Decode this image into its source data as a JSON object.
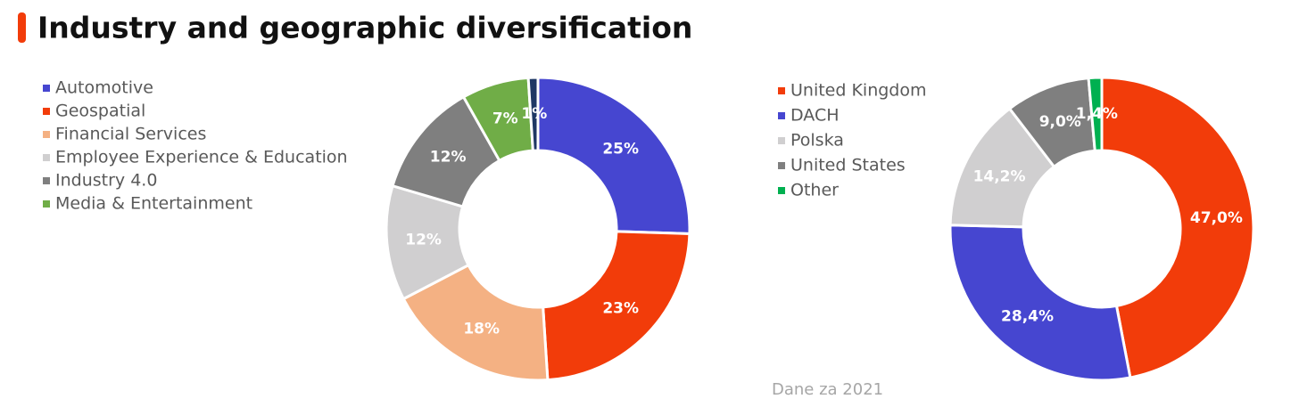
{
  "title": "Industry and geographic diversification",
  "note": "Dane za 2021",
  "chart_data": [
    {
      "type": "donut",
      "categories": [
        "Automotive",
        "Geospatial",
        "Financial Services",
        "Employee Experience & Education",
        "Industry 4.0",
        "Media & Entertainment",
        null
      ],
      "values": [
        25,
        23,
        18,
        12,
        12,
        7,
        1
      ],
      "value_labels": [
        "25%",
        "23%",
        "18%",
        "12%",
        "12%",
        "7%",
        "1%"
      ],
      "colors": [
        "#4646d0",
        "#f23c0a",
        "#f4b183",
        "#d0cfd0",
        "#7f7f7f",
        "#70ad47",
        "#1f3864"
      ]
    },
    {
      "type": "donut",
      "categories": [
        "United Kingdom",
        "DACH",
        "Polska",
        "United States",
        "Other"
      ],
      "values": [
        47.0,
        28.4,
        14.2,
        9.0,
        1.4
      ],
      "value_labels": [
        "47,0%",
        "28,4%",
        "14,2%",
        "9,0%",
        "1,4%"
      ],
      "colors": [
        "#f23c0a",
        "#4646d0",
        "#d0cfd0",
        "#7f7f7f",
        "#00b050"
      ]
    }
  ]
}
